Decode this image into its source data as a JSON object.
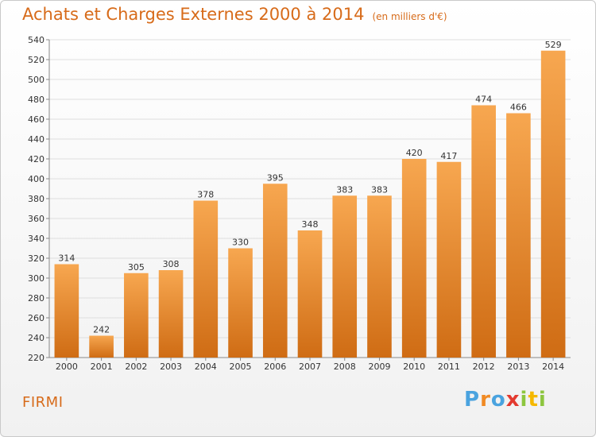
{
  "header": {
    "title": "Achats et Charges Externes 2000 à 2014",
    "unit": "(en milliers d'€)"
  },
  "footer": {
    "commune": "FIRMI",
    "logo_letters": [
      "P",
      "r",
      "o",
      "x",
      "i",
      "t",
      "i"
    ]
  },
  "colors": {
    "bar_top": "#f7a750",
    "bar_bottom": "#cf6c14",
    "title": "#d76b1a",
    "logo": [
      "#4aa3df",
      "#f08a24",
      "#4aa3df",
      "#e33a2f",
      "#8dc63f",
      "#f5b800",
      "#8dc63f"
    ]
  },
  "chart_data": {
    "type": "bar",
    "title": "Achats et Charges Externes 2000 à 2014",
    "categories": [
      "2000",
      "2001",
      "2002",
      "2003",
      "2004",
      "2005",
      "2006",
      "2007",
      "2008",
      "2009",
      "2010",
      "2011",
      "2012",
      "2013",
      "2014"
    ],
    "values": [
      314,
      242,
      305,
      308,
      378,
      330,
      395,
      348,
      383,
      383,
      420,
      417,
      474,
      466,
      529
    ],
    "ylim": [
      220,
      540
    ],
    "yticks": [
      220,
      240,
      260,
      280,
      300,
      320,
      340,
      360,
      380,
      400,
      420,
      440,
      460,
      480,
      500,
      520,
      540
    ],
    "grid": true
  }
}
